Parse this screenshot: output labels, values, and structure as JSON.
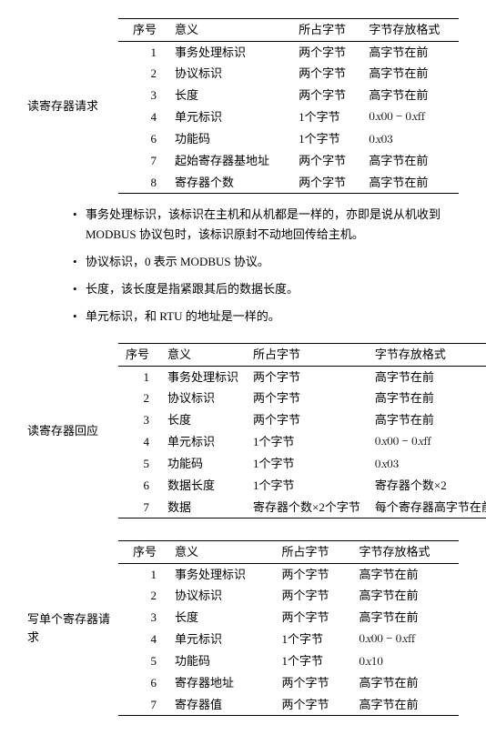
{
  "sections": [
    {
      "label": "读寄存器请求",
      "headers": [
        "序号",
        "意义",
        "所占字节",
        "字节存放格式"
      ],
      "rows": [
        [
          "1",
          "事务处理标识",
          "两个字节",
          "高字节在前"
        ],
        [
          "2",
          "协议标识",
          "两个字节",
          "高字节在前"
        ],
        [
          "3",
          "长度",
          "两个字节",
          "高字节在前"
        ],
        [
          "4",
          "单元标识",
          "1个字节",
          "0x00 − 0xff"
        ],
        [
          "6",
          "功能码",
          "1个字节",
          "0x03"
        ],
        [
          "7",
          "起始寄存器基地址",
          "两个字节",
          "高字节在前"
        ],
        [
          "8",
          "寄存器个数",
          "两个字节",
          "高字节在前"
        ]
      ],
      "mathCells": {
        "3-3": true,
        "4-3": true
      }
    },
    {
      "label": "读寄存器回应",
      "headers": [
        "序号",
        "意义",
        "所占字节",
        "字节存放格式"
      ],
      "rows": [
        [
          "1",
          "事务处理标识",
          "两个字节",
          "高字节在前"
        ],
        [
          "2",
          "协议标识",
          "两个字节",
          "高字节在前"
        ],
        [
          "3",
          "长度",
          "两个字节",
          "高字节在前"
        ],
        [
          "4",
          "单元标识",
          "1个字节",
          "0x00 − 0xff"
        ],
        [
          "5",
          "功能码",
          "1个字节",
          "0x03"
        ],
        [
          "6",
          "数据长度",
          "1个字节",
          "寄存器个数×2"
        ],
        [
          "7",
          "数据",
          "寄存器个数×2个字节",
          "每个寄存器高字节在前"
        ]
      ],
      "mathCells": {
        "3-3": true,
        "4-3": true
      }
    },
    {
      "label": "写单个寄存器请求",
      "headers": [
        "序号",
        "意义",
        "所占字节",
        "字节存放格式"
      ],
      "rows": [
        [
          "1",
          "事务处理标识",
          "两个字节",
          "高字节在前"
        ],
        [
          "2",
          "协议标识",
          "两个字节",
          "高字节在前"
        ],
        [
          "3",
          "长度",
          "两个字节",
          "高字节在前"
        ],
        [
          "4",
          "单元标识",
          "1个字节",
          "0x00 − 0xff"
        ],
        [
          "5",
          "功能码",
          "1个字节",
          "0x10"
        ],
        [
          "6",
          "寄存器地址",
          "两个字节",
          "高字节在前"
        ],
        [
          "7",
          "寄存器值",
          "两个字节",
          "高字节在前"
        ]
      ],
      "mathCells": {
        "3-3": true,
        "4-3": true
      }
    }
  ],
  "notes": [
    "事务处理标识，该标识在主机和从机都是一样的，亦即是说从机收到 MODBUS 协议包时，该标识原封不动地回传给主机。",
    "协议标识，0 表示 MODBUS 协议。",
    "长度，该长度是指紧跟其后的数据长度。",
    "单元标识，和 RTU 的地址是一样的。"
  ]
}
